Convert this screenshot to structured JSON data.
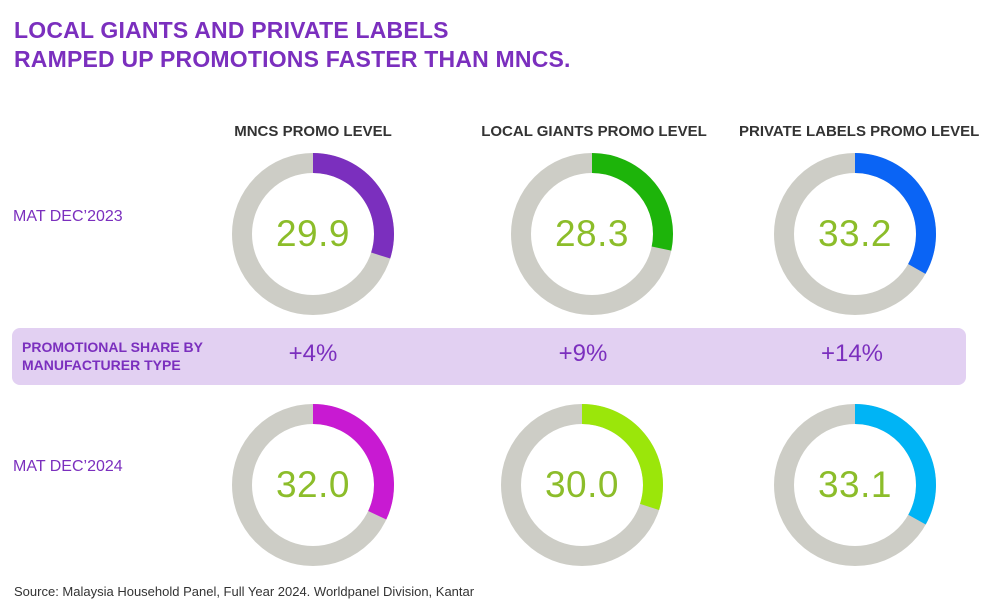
{
  "title_lines": [
    "LOCAL GIANTS AND PRIVATE LABELS",
    "RAMPED UP PROMOTIONS FASTER THAN MNCS."
  ],
  "columns": [
    "MNCS PROMO LEVEL",
    "LOCAL GIANTS PROMO LEVEL",
    "PRIVATE LABELS PROMO LEVEL"
  ],
  "rows": [
    "MAT DEC’2023",
    "MAT DEC’2024"
  ],
  "band": {
    "label_lines": [
      "PROMOTIONAL SHARE BY",
      "MANUFACTURER TYPE"
    ],
    "changes": [
      "+4%",
      "+9%",
      "+14%"
    ]
  },
  "source": "Source: Malaysia Household Panel, Full Year 2024. Worldpanel Division, Kantar",
  "colors": {
    "title": "#7b2fbe",
    "track": "#cdcdc6",
    "value_text": "#8cbd2a",
    "band_bg": "#e2d0f2"
  },
  "chart_data": {
    "type": "donut",
    "max": 100,
    "values": [
      [
        29.9,
        28.3,
        33.2
      ],
      [
        32.0,
        30.0,
        33.1
      ]
    ],
    "labels": [
      [
        "29.9",
        "28.3",
        "33.2"
      ],
      [
        "32.0",
        "30.0",
        "33.1"
      ]
    ],
    "segment_colors": [
      [
        "#7b2fbe",
        "#1db40a",
        "#0a64f5"
      ],
      [
        "#c81ad2",
        "#9be60a",
        "#00b4f5"
      ]
    ]
  }
}
